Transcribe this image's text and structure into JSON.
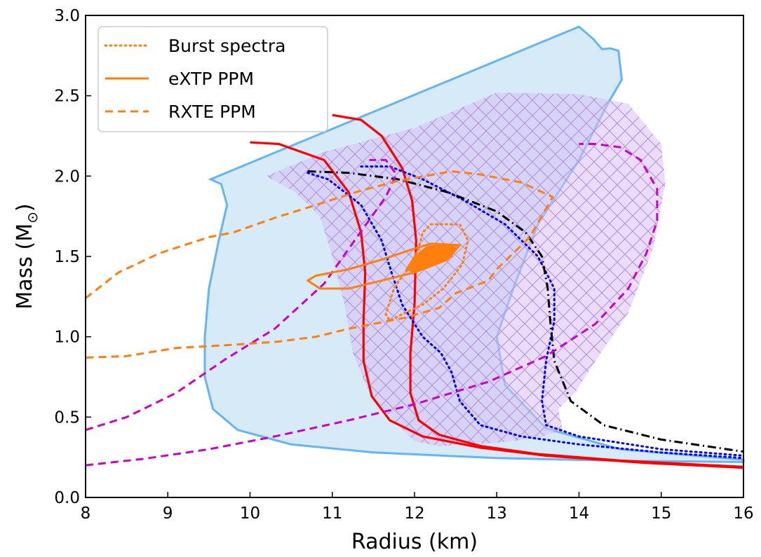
{
  "chart_data": {
    "type": "line",
    "title": "",
    "xlabel": "Radius (km)",
    "ylabel_main": "Mass (M",
    "ylabel_sub": "⊙",
    "ylabel_close": ")",
    "xlim": [
      8,
      16
    ],
    "ylim": [
      0,
      3.0
    ],
    "xticks": [
      8,
      9,
      10,
      11,
      12,
      13,
      14,
      15,
      16
    ],
    "yticks": [
      0.0,
      0.5,
      1.0,
      1.5,
      2.0,
      2.5,
      3.0
    ],
    "legend": {
      "placement": "top-left",
      "entries": [
        {
          "label": "Burst spectra",
          "color": "#ff7f0e",
          "style": "dotted"
        },
        {
          "label": "eXTP PPM",
          "color": "#ff7f0e",
          "style": "solid"
        },
        {
          "label": "RXTE PPM",
          "color": "#ff7f0e",
          "style": "dashed"
        }
      ]
    },
    "regions": [
      {
        "kind": "band-blue",
        "fill": "#d6eaf8",
        "stroke": "#64b5f6",
        "points": [
          [
            9.52,
            1.98
          ],
          [
            9.65,
            1.95
          ],
          [
            9.72,
            1.82
          ],
          [
            9.62,
            1.6
          ],
          [
            9.5,
            1.3
          ],
          [
            9.45,
            1.0
          ],
          [
            9.45,
            0.75
          ],
          [
            9.55,
            0.55
          ],
          [
            9.85,
            0.42
          ],
          [
            10.5,
            0.33
          ],
          [
            11.5,
            0.28
          ],
          [
            13,
            0.245
          ],
          [
            14.5,
            0.228
          ],
          [
            16,
            0.22
          ],
          [
            16,
            0.235
          ],
          [
            14.5,
            0.3
          ],
          [
            13.6,
            0.43
          ],
          [
            13.1,
            0.7
          ],
          [
            13.0,
            1.0
          ],
          [
            13.2,
            1.3
          ],
          [
            13.5,
            1.7
          ],
          [
            14.0,
            2.1
          ],
          [
            14.35,
            2.45
          ],
          [
            14.52,
            2.6
          ],
          [
            14.48,
            2.78
          ],
          [
            14.38,
            2.795
          ],
          [
            14.28,
            2.79
          ],
          [
            14.18,
            2.85
          ],
          [
            14.0,
            2.93
          ],
          [
            9.52,
            1.98
          ]
        ]
      },
      {
        "kind": "band-purple",
        "fill": "#d9bff5",
        "stroke": "none",
        "opacity": 0.55,
        "points": [
          [
            10.2,
            2.0
          ],
          [
            10.9,
            2.15
          ],
          [
            12.0,
            2.3
          ],
          [
            13.0,
            2.52
          ],
          [
            14.0,
            2.51
          ],
          [
            14.6,
            2.45
          ],
          [
            15.0,
            2.2
          ],
          [
            15.05,
            1.95
          ],
          [
            14.9,
            1.55
          ],
          [
            14.6,
            1.15
          ],
          [
            14.2,
            0.85
          ],
          [
            13.95,
            0.65
          ],
          [
            13.75,
            0.55
          ],
          [
            13.8,
            0.42
          ],
          [
            13.5,
            0.37
          ],
          [
            13.0,
            0.34
          ],
          [
            12.3,
            0.32
          ],
          [
            12.0,
            0.35
          ],
          [
            11.8,
            0.45
          ],
          [
            11.45,
            0.65
          ],
          [
            11.25,
            0.9
          ],
          [
            11.15,
            1.2
          ],
          [
            11.0,
            1.5
          ],
          [
            10.85,
            1.75
          ],
          [
            10.55,
            1.9
          ],
          [
            10.2,
            2.0
          ]
        ]
      }
    ],
    "series": [
      {
        "color": "#ff0000",
        "style": "solid",
        "width": 3.2,
        "points": [
          [
            11.0,
            2.38
          ],
          [
            11.35,
            2.35
          ],
          [
            11.6,
            2.25
          ],
          [
            11.85,
            2.05
          ],
          [
            11.97,
            1.85
          ],
          [
            12.02,
            1.6
          ],
          [
            12.0,
            1.2
          ],
          [
            11.95,
            0.9
          ],
          [
            11.95,
            0.65
          ],
          [
            12.05,
            0.48
          ],
          [
            12.3,
            0.39
          ],
          [
            12.8,
            0.32
          ],
          [
            13.5,
            0.27
          ],
          [
            14.5,
            0.23
          ],
          [
            16,
            0.19
          ]
        ]
      },
      {
        "color": "#ff0000",
        "style": "solid",
        "width": 3.2,
        "points": [
          [
            10.0,
            2.21
          ],
          [
            10.35,
            2.2
          ],
          [
            10.9,
            2.1
          ],
          [
            11.2,
            1.9
          ],
          [
            11.35,
            1.65
          ],
          [
            11.4,
            1.4
          ],
          [
            11.38,
            1.1
          ],
          [
            11.38,
            0.85
          ],
          [
            11.48,
            0.63
          ],
          [
            11.7,
            0.48
          ],
          [
            12.1,
            0.38
          ],
          [
            12.8,
            0.31
          ],
          [
            13.6,
            0.26
          ],
          [
            14.8,
            0.215
          ],
          [
            16,
            0.185
          ]
        ]
      },
      {
        "color": "#0000ff",
        "style": "dotted",
        "width": 3,
        "points": [
          [
            10.7,
            2.02
          ],
          [
            10.95,
            1.98
          ],
          [
            11.35,
            1.82
          ],
          [
            11.6,
            1.6
          ],
          [
            11.72,
            1.4
          ],
          [
            11.85,
            1.2
          ],
          [
            12.1,
            1.0
          ],
          [
            12.32,
            0.9
          ],
          [
            12.45,
            0.78
          ],
          [
            12.55,
            0.6
          ],
          [
            12.8,
            0.45
          ],
          [
            13.3,
            0.38
          ],
          [
            14,
            0.33
          ],
          [
            15,
            0.28
          ],
          [
            16,
            0.245
          ]
        ]
      },
      {
        "color": "#0000ff",
        "style": "dotted",
        "width": 3,
        "points": [
          [
            11.35,
            2.06
          ],
          [
            11.7,
            2.06
          ],
          [
            12.1,
            1.98
          ],
          [
            12.6,
            1.85
          ],
          [
            13.1,
            1.7
          ],
          [
            13.5,
            1.5
          ],
          [
            13.7,
            1.3
          ],
          [
            13.7,
            1.1
          ],
          [
            13.6,
            0.85
          ],
          [
            13.55,
            0.6
          ],
          [
            13.6,
            0.45
          ],
          [
            14,
            0.38
          ],
          [
            15,
            0.3
          ],
          [
            16,
            0.26
          ]
        ]
      },
      {
        "color": "#000000",
        "style": "dashdot",
        "width": 3,
        "points": [
          [
            10.7,
            2.03
          ],
          [
            11.2,
            2.02
          ],
          [
            11.8,
            1.98
          ],
          [
            12.4,
            1.9
          ],
          [
            13.0,
            1.78
          ],
          [
            13.35,
            1.65
          ],
          [
            13.55,
            1.5
          ],
          [
            13.62,
            1.3
          ],
          [
            13.65,
            1.1
          ],
          [
            13.7,
            0.85
          ],
          [
            13.9,
            0.6
          ],
          [
            14.3,
            0.45
          ],
          [
            15,
            0.36
          ],
          [
            16,
            0.285
          ]
        ]
      },
      {
        "color": "#cc00cc",
        "style": "dashed",
        "width": 3,
        "points": [
          [
            8.0,
            0.42
          ],
          [
            8.5,
            0.5
          ],
          [
            9.1,
            0.65
          ],
          [
            9.7,
            0.86
          ],
          [
            10.3,
            1.05
          ],
          [
            10.9,
            1.33
          ],
          [
            11.3,
            1.62
          ],
          [
            11.65,
            1.87
          ],
          [
            11.78,
            2.01
          ],
          [
            11.65,
            2.1
          ],
          [
            11.45,
            2.1
          ]
        ]
      },
      {
        "color": "#cc00cc",
        "style": "dashed",
        "width": 3,
        "points": [
          [
            8.0,
            0.2
          ],
          [
            8.7,
            0.24
          ],
          [
            9.5,
            0.3
          ],
          [
            10.3,
            0.38
          ],
          [
            11.2,
            0.48
          ],
          [
            12.0,
            0.58
          ],
          [
            12.9,
            0.72
          ],
          [
            13.6,
            0.88
          ],
          [
            14.2,
            1.08
          ],
          [
            14.6,
            1.3
          ],
          [
            14.82,
            1.52
          ],
          [
            14.95,
            1.72
          ],
          [
            14.95,
            1.92
          ],
          [
            14.75,
            2.1
          ],
          [
            14.5,
            2.18
          ],
          [
            14.2,
            2.2
          ],
          [
            14.0,
            2.2
          ]
        ]
      },
      {
        "color": "#ff7f0e",
        "style": "dashed",
        "width": 3,
        "points": [
          [
            8.0,
            1.24
          ],
          [
            8.4,
            1.4
          ],
          [
            8.9,
            1.52
          ],
          [
            9.5,
            1.62
          ],
          [
            9.8,
            1.65
          ],
          [
            10.3,
            1.74
          ],
          [
            10.8,
            1.82
          ],
          [
            11.35,
            1.91
          ],
          [
            11.8,
            1.97
          ],
          [
            12.45,
            2.03
          ],
          [
            12.8,
            2.01
          ],
          [
            13.3,
            1.96
          ],
          [
            13.68,
            1.87
          ],
          [
            13.4,
            1.62
          ],
          [
            13.0,
            1.42
          ],
          [
            12.9,
            1.35
          ],
          [
            12.5,
            1.27
          ],
          [
            12.3,
            1.18
          ],
          [
            11.9,
            1.12
          ],
          [
            11.5,
            1.08
          ],
          [
            11.2,
            1.05
          ],
          [
            10.8,
            1.0
          ],
          [
            10.35,
            0.97
          ],
          [
            9.8,
            0.95
          ],
          [
            9.1,
            0.93
          ],
          [
            8.5,
            0.88
          ],
          [
            8.0,
            0.87
          ]
        ]
      },
      {
        "color": "#ff7f0e",
        "style": "dotted",
        "width": 3,
        "points": [
          [
            12.2,
            1.7
          ],
          [
            12.55,
            1.7
          ],
          [
            12.65,
            1.6
          ],
          [
            12.58,
            1.45
          ],
          [
            12.35,
            1.3
          ],
          [
            12.1,
            1.2
          ],
          [
            11.85,
            1.14
          ],
          [
            11.7,
            1.1
          ],
          [
            11.65,
            1.14
          ],
          [
            11.75,
            1.3
          ],
          [
            11.95,
            1.45
          ],
          [
            12.05,
            1.55
          ],
          [
            12.1,
            1.65
          ],
          [
            12.2,
            1.7
          ]
        ]
      },
      {
        "color": "#ff7f0e",
        "style": "solid",
        "width": 3,
        "points": [
          [
            12.2,
            1.58
          ],
          [
            12.55,
            1.57
          ],
          [
            12.4,
            1.48
          ],
          [
            12.0,
            1.4
          ],
          [
            11.6,
            1.35
          ],
          [
            11.2,
            1.3
          ],
          [
            10.85,
            1.3
          ],
          [
            10.7,
            1.35
          ],
          [
            10.8,
            1.38
          ],
          [
            11.2,
            1.42
          ],
          [
            11.6,
            1.48
          ],
          [
            11.95,
            1.54
          ],
          [
            12.2,
            1.58
          ]
        ]
      }
    ],
    "filled_blob": {
      "color": "#ff7f0e",
      "points": [
        [
          12.15,
          1.56
        ],
        [
          12.35,
          1.58
        ],
        [
          12.5,
          1.56
        ],
        [
          12.45,
          1.5
        ],
        [
          12.2,
          1.44
        ],
        [
          12.0,
          1.4
        ],
        [
          11.9,
          1.42
        ],
        [
          12.0,
          1.5
        ],
        [
          12.15,
          1.56
        ]
      ]
    }
  }
}
